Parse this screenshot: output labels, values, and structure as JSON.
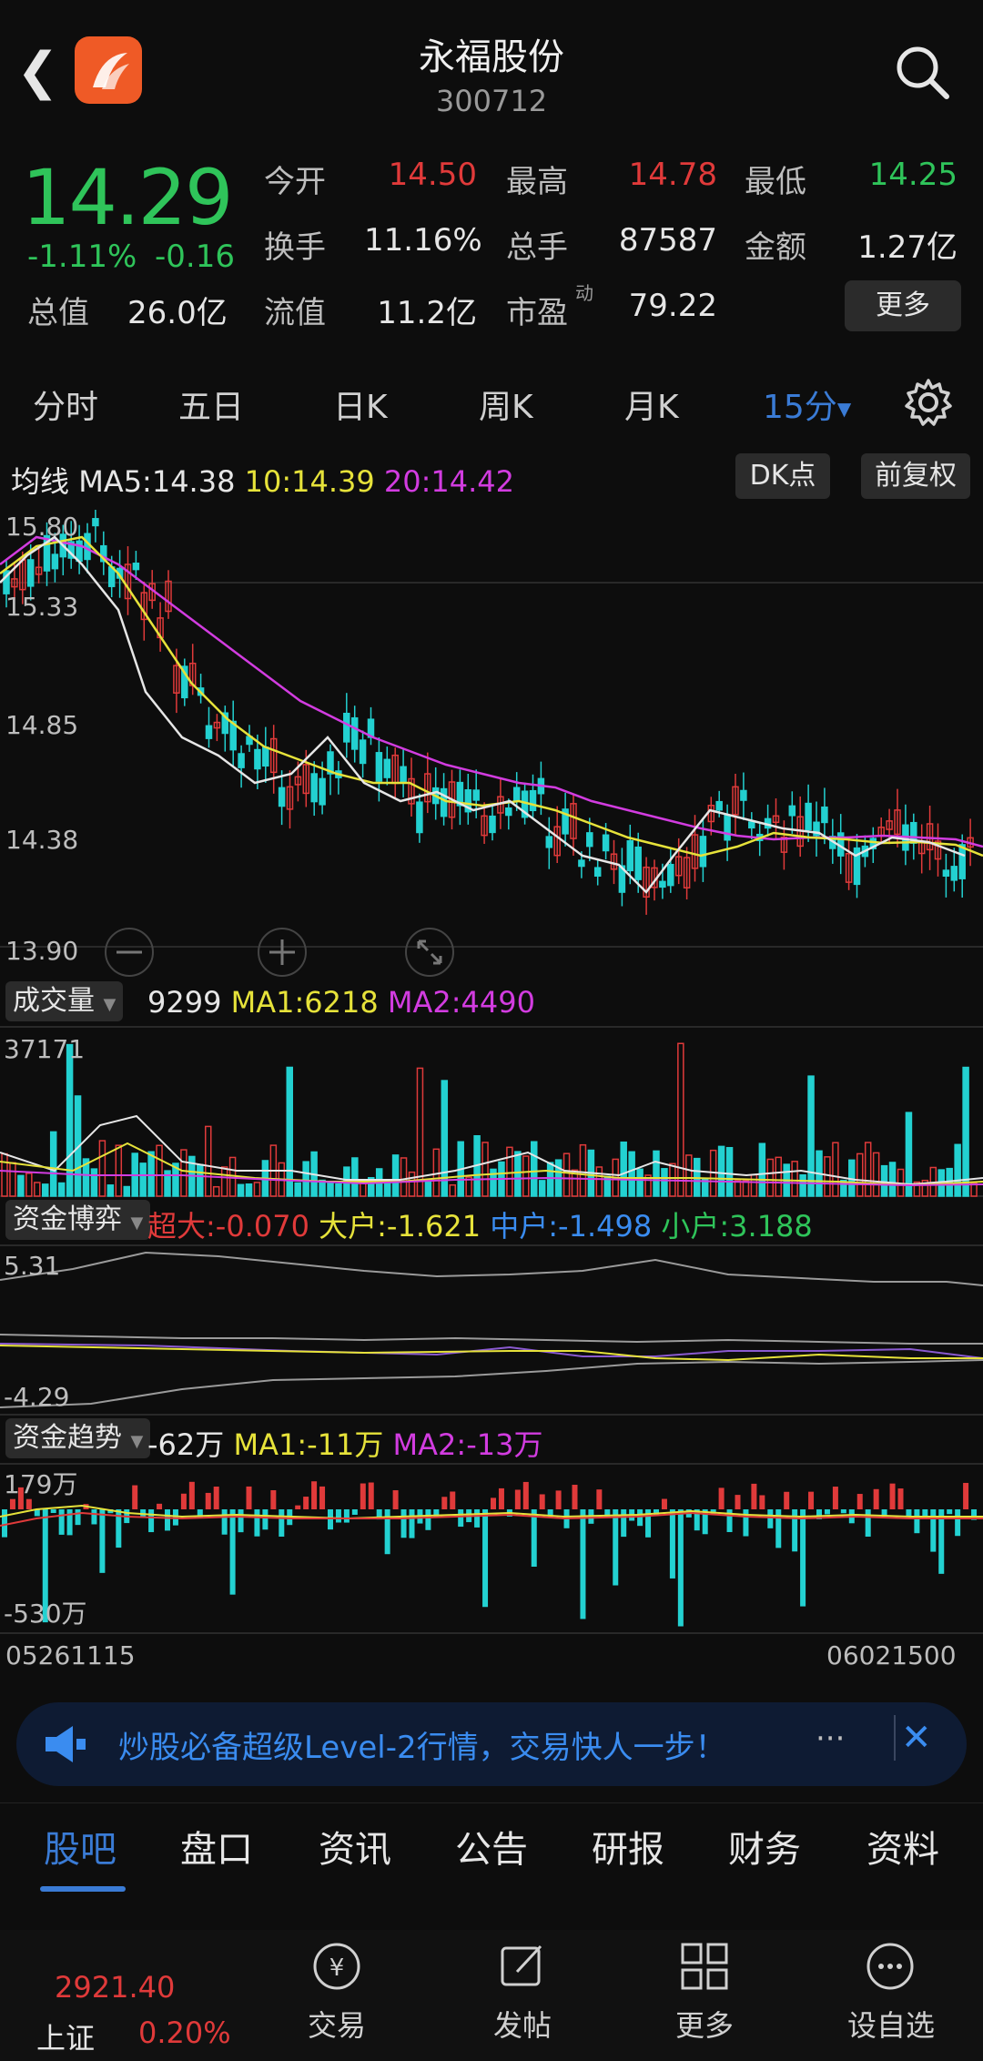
{
  "header": {
    "back_glyph": "❮",
    "stock_name": "永福股份",
    "stock_code": "300712",
    "logo_icon": "app-logo-icon",
    "search_icon": "search-icon"
  },
  "quote": {
    "price": "14.29",
    "pct": "-1.11%",
    "change": "-0.16",
    "rows": [
      [
        {
          "label": "今开",
          "value": "14.50",
          "color": "red"
        },
        {
          "label": "最高",
          "value": "14.78",
          "color": "red"
        },
        {
          "label": "最低",
          "value": "14.25",
          "color": "green"
        }
      ],
      [
        {
          "label": "换手",
          "value": "11.16%",
          "color": "white"
        },
        {
          "label": "总手",
          "value": "87587",
          "color": "white"
        },
        {
          "label": "金额",
          "value": "1.27亿",
          "color": "white"
        }
      ],
      [
        {
          "label": "流值",
          "value": "11.2亿",
          "color": "white"
        },
        {
          "label": "市盈",
          "value": "79.22",
          "color": "white"
        }
      ]
    ],
    "total_label": "总值",
    "total_value": "26.0亿",
    "pe_sup": "动",
    "more_label": "更多"
  },
  "period_tabs": [
    "分时",
    "五日",
    "日K",
    "周K",
    "月K",
    "15分"
  ],
  "period_active_index": 5,
  "kline": {
    "legend_label": "均线",
    "ma5": "MA5:14.38",
    "ma10": "10:14.39",
    "ma20": "20:14.42",
    "dk_label": "DK点",
    "fq_label": "前复权",
    "y_labels": [
      "15.80",
      "15.33",
      "14.85",
      "14.38",
      "13.90"
    ]
  },
  "volume": {
    "tag": "成交量",
    "value": "9299",
    "ma1": "MA1:6218",
    "ma2": "MA2:4490",
    "max_label": "37171"
  },
  "fund_game": {
    "tag": "资金博弈",
    "chaoda": "超大:-0.070",
    "dahu": "大户:-1.621",
    "zhonghu": "中户:-1.498",
    "xiaohu": "小户:3.188",
    "y_top": "5.31",
    "y_bottom": "-4.29"
  },
  "fund_trend": {
    "tag": "资金趋势",
    "value": "-62万",
    "ma1": "MA1:-11万",
    "ma2": "MA2:-13万",
    "y_top": "179万",
    "y_bottom": "-530万"
  },
  "time_axis": {
    "start": "05261115",
    "end": "06021500"
  },
  "ad": {
    "text": "炒股必备超级Level-2行情，交易快人一步！",
    "dots": "···",
    "close": "✕"
  },
  "bottom_tabs": [
    "股吧",
    "盘口",
    "资讯",
    "公告",
    "研报",
    "财务",
    "资料"
  ],
  "bottom_tab_active": 0,
  "nav": {
    "index_value": "2921.40",
    "index_name": "上证",
    "index_pct": "0.20%",
    "items": [
      "交易",
      "发帖",
      "更多",
      "设自选"
    ]
  },
  "colors": {
    "up": "#e03a3a",
    "down": "#2fc45a",
    "accent": "#3a7bd5",
    "ma5": "#e6e6e6",
    "ma10": "#e6e23a",
    "ma20": "#d23ce0"
  }
}
